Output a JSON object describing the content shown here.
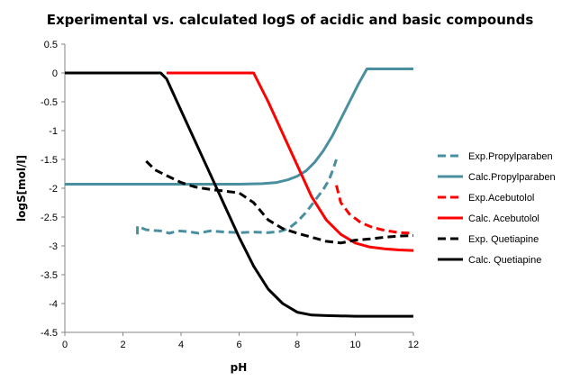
{
  "chart_data": {
    "type": "line",
    "title": "Experimental vs. calculated logS of acidic and basic compounds",
    "xlabel": "pH",
    "ylabel": "logS[mol/l]",
    "xlim": [
      0,
      12
    ],
    "ylim": [
      -4.5,
      0.5
    ],
    "xticks": [
      0,
      2,
      4,
      6,
      8,
      10,
      12
    ],
    "yticks": [
      0.5,
      0,
      -0.5,
      -1,
      -1.5,
      -2,
      -2.5,
      -3,
      -3.5,
      -4,
      -4.5
    ],
    "grid": false,
    "legend_position": "right",
    "series": [
      {
        "name": "Exp.Propylparaben",
        "color": "#4a8fa0",
        "dashed": true,
        "points": [
          [
            2.5,
            -2.8
          ],
          [
            2.5,
            -2.66
          ],
          [
            2.8,
            -2.72
          ],
          [
            3.0,
            -2.73
          ],
          [
            3.3,
            -2.74
          ],
          [
            3.6,
            -2.78
          ],
          [
            3.9,
            -2.74
          ],
          [
            4.2,
            -2.75
          ],
          [
            4.6,
            -2.78
          ],
          [
            5.0,
            -2.74
          ],
          [
            5.5,
            -2.76
          ],
          [
            6.0,
            -2.77
          ],
          [
            6.5,
            -2.76
          ],
          [
            7.0,
            -2.77
          ],
          [
            7.4,
            -2.75
          ],
          [
            7.7,
            -2.7
          ],
          [
            8.0,
            -2.58
          ],
          [
            8.3,
            -2.42
          ],
          [
            8.6,
            -2.22
          ],
          [
            8.9,
            -2.02
          ],
          [
            9.1,
            -1.85
          ],
          [
            9.25,
            -1.65
          ],
          [
            9.35,
            -1.5
          ]
        ]
      },
      {
        "name": "Calc.Propylparaben",
        "color": "#4a8fa0",
        "dashed": false,
        "points": [
          [
            0,
            -1.93
          ],
          [
            6.0,
            -1.93
          ],
          [
            6.8,
            -1.92
          ],
          [
            7.3,
            -1.9
          ],
          [
            7.7,
            -1.85
          ],
          [
            8.0,
            -1.79
          ],
          [
            8.3,
            -1.7
          ],
          [
            8.6,
            -1.55
          ],
          [
            8.9,
            -1.35
          ],
          [
            9.2,
            -1.1
          ],
          [
            9.5,
            -0.8
          ],
          [
            9.8,
            -0.5
          ],
          [
            10.1,
            -0.2
          ],
          [
            10.4,
            0.07
          ],
          [
            11.0,
            0.07
          ],
          [
            12.0,
            0.07
          ]
        ]
      },
      {
        "name": "Exp.Acebutolol",
        "color": "#ff0000",
        "dashed": true,
        "points": [
          [
            9.35,
            -1.95
          ],
          [
            9.5,
            -2.25
          ],
          [
            9.8,
            -2.45
          ],
          [
            10.2,
            -2.6
          ],
          [
            10.6,
            -2.68
          ],
          [
            11.0,
            -2.73
          ],
          [
            11.5,
            -2.77
          ],
          [
            12.0,
            -2.78
          ]
        ]
      },
      {
        "name": "Calc. Acebutolol",
        "color": "#ff0000",
        "dashed": false,
        "points": [
          [
            3.5,
            0.0
          ],
          [
            6.5,
            0.0
          ],
          [
            7.0,
            -0.5
          ],
          [
            7.5,
            -1.05
          ],
          [
            8.0,
            -1.6
          ],
          [
            8.5,
            -2.15
          ],
          [
            9.0,
            -2.55
          ],
          [
            9.5,
            -2.8
          ],
          [
            10.0,
            -2.95
          ],
          [
            10.5,
            -3.02
          ],
          [
            11.0,
            -3.05
          ],
          [
            11.5,
            -3.07
          ],
          [
            12.0,
            -3.08
          ]
        ]
      },
      {
        "name": "Exp. Quetiapine",
        "color": "#000000",
        "dashed": true,
        "points": [
          [
            2.8,
            -1.53
          ],
          [
            3.1,
            -1.68
          ],
          [
            3.5,
            -1.78
          ],
          [
            4.0,
            -1.9
          ],
          [
            4.5,
            -1.98
          ],
          [
            5.0,
            -2.02
          ],
          [
            5.5,
            -2.05
          ],
          [
            6.0,
            -2.08
          ],
          [
            6.5,
            -2.25
          ],
          [
            7.0,
            -2.55
          ],
          [
            7.5,
            -2.7
          ],
          [
            8.0,
            -2.78
          ],
          [
            8.5,
            -2.85
          ],
          [
            9.0,
            -2.92
          ],
          [
            9.5,
            -2.95
          ],
          [
            10.0,
            -2.9
          ],
          [
            10.5,
            -2.88
          ],
          [
            11.0,
            -2.85
          ],
          [
            11.5,
            -2.83
          ],
          [
            12.0,
            -2.82
          ]
        ]
      },
      {
        "name": "Calc. Quetiapine",
        "color": "#000000",
        "dashed": false,
        "points": [
          [
            0,
            0.0
          ],
          [
            3.3,
            0.0
          ],
          [
            3.5,
            -0.1
          ],
          [
            4.0,
            -0.65
          ],
          [
            4.5,
            -1.2
          ],
          [
            5.0,
            -1.75
          ],
          [
            5.5,
            -2.3
          ],
          [
            6.0,
            -2.85
          ],
          [
            6.5,
            -3.35
          ],
          [
            7.0,
            -3.75
          ],
          [
            7.5,
            -4.0
          ],
          [
            8.0,
            -4.15
          ],
          [
            8.5,
            -4.2
          ],
          [
            9.0,
            -4.21
          ],
          [
            10.0,
            -4.22
          ],
          [
            12.0,
            -4.22
          ]
        ]
      }
    ]
  }
}
